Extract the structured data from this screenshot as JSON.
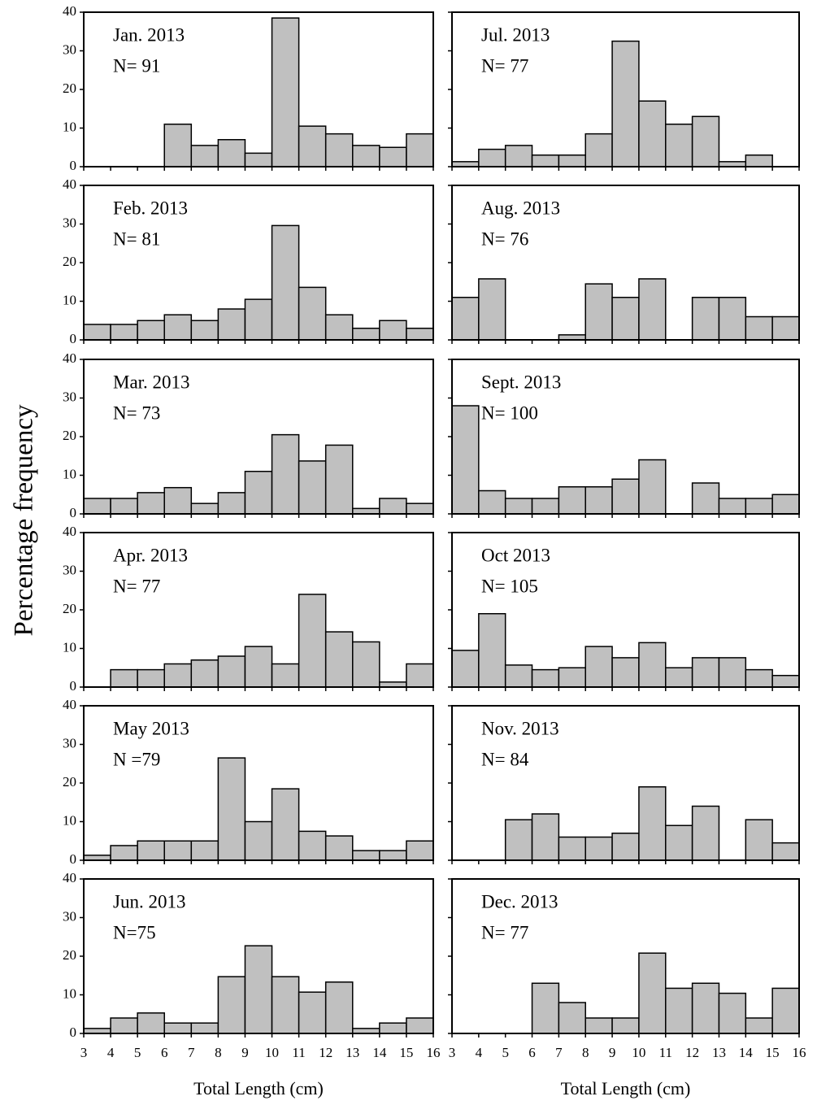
{
  "ylabel": "Percentage frequency",
  "chart_data": [
    {
      "type": "histogram",
      "title": "Jan. 2013",
      "subtitle": "N= 91",
      "bins": [
        3,
        4,
        5,
        6,
        7,
        8,
        9,
        10,
        11,
        12,
        13,
        14,
        15,
        16
      ],
      "values": [
        0,
        0,
        0,
        11,
        5.5,
        7,
        3.5,
        38.5,
        10.5,
        8.5,
        5.5,
        5,
        8.5
      ],
      "color": "#c0c0c0",
      "xlim": [
        3,
        16
      ],
      "ylim": [
        0,
        40
      ],
      "yticks": [
        0,
        10,
        20,
        30,
        40
      ],
      "xticks": [
        3,
        4,
        5,
        6,
        7,
        8,
        9,
        10,
        11,
        12,
        13,
        14,
        15,
        16
      ],
      "ytick_labels": true,
      "xtick_labels": false
    },
    {
      "type": "histogram",
      "title": "Jul. 2013",
      "subtitle": "N= 77",
      "bins": [
        3,
        4,
        5,
        6,
        7,
        8,
        9,
        10,
        11,
        12,
        13,
        14,
        15,
        16
      ],
      "values": [
        1.3,
        4.5,
        5.5,
        3,
        3,
        8.5,
        32.5,
        17,
        11,
        13,
        1.3,
        3,
        0
      ],
      "color": "#c0c0c0",
      "xlim": [
        3,
        16
      ],
      "ylim": [
        0,
        40
      ],
      "yticks": [
        0,
        10,
        20,
        30,
        40
      ],
      "xticks": [
        3,
        4,
        5,
        6,
        7,
        8,
        9,
        10,
        11,
        12,
        13,
        14,
        15,
        16
      ],
      "ytick_labels": false,
      "xtick_labels": false
    },
    {
      "type": "histogram",
      "title": "Feb. 2013",
      "subtitle": "N= 81",
      "bins": [
        3,
        4,
        5,
        6,
        7,
        8,
        9,
        10,
        11,
        12,
        13,
        14,
        15,
        16
      ],
      "values": [
        4,
        4,
        5,
        6.5,
        5,
        8,
        10.5,
        29.6,
        13.6,
        6.5,
        3,
        5,
        3
      ],
      "color": "#c0c0c0",
      "xlim": [
        3,
        16
      ],
      "ylim": [
        0,
        40
      ],
      "yticks": [
        0,
        10,
        20,
        30,
        40
      ],
      "xticks": [
        3,
        4,
        5,
        6,
        7,
        8,
        9,
        10,
        11,
        12,
        13,
        14,
        15,
        16
      ],
      "ytick_labels": true,
      "xtick_labels": false
    },
    {
      "type": "histogram",
      "title": "Aug. 2013",
      "subtitle": "N= 76",
      "bins": [
        3,
        4,
        5,
        6,
        7,
        8,
        9,
        10,
        11,
        12,
        13,
        14,
        15,
        16
      ],
      "values": [
        11,
        15.8,
        0,
        0,
        1.3,
        14.5,
        11,
        15.8,
        0,
        11,
        11,
        6,
        6
      ],
      "color": "#c0c0c0",
      "xlim": [
        3,
        16
      ],
      "ylim": [
        0,
        40
      ],
      "yticks": [
        0,
        10,
        20,
        30,
        40
      ],
      "xticks": [
        3,
        4,
        5,
        6,
        7,
        8,
        9,
        10,
        11,
        12,
        13,
        14,
        15,
        16
      ],
      "ytick_labels": false,
      "xtick_labels": false
    },
    {
      "type": "histogram",
      "title": "Mar. 2013",
      "subtitle": "N= 73",
      "bins": [
        3,
        4,
        5,
        6,
        7,
        8,
        9,
        10,
        11,
        12,
        13,
        14,
        15,
        16
      ],
      "values": [
        4,
        4,
        5.5,
        6.8,
        2.7,
        5.5,
        11,
        20.5,
        13.7,
        17.8,
        1.4,
        4,
        2.7
      ],
      "color": "#c0c0c0",
      "xlim": [
        3,
        16
      ],
      "ylim": [
        0,
        40
      ],
      "yticks": [
        0,
        10,
        20,
        30,
        40
      ],
      "xticks": [
        3,
        4,
        5,
        6,
        7,
        8,
        9,
        10,
        11,
        12,
        13,
        14,
        15,
        16
      ],
      "ytick_labels": true,
      "xtick_labels": false
    },
    {
      "type": "histogram",
      "title": "Sept. 2013",
      "subtitle": "N= 100",
      "bins": [
        3,
        4,
        5,
        6,
        7,
        8,
        9,
        10,
        11,
        12,
        13,
        14,
        15,
        16
      ],
      "values": [
        28,
        6,
        4,
        4,
        7,
        7,
        9,
        14,
        0,
        8,
        4,
        4,
        5
      ],
      "color": "#c0c0c0",
      "xlim": [
        3,
        16
      ],
      "ylim": [
        0,
        40
      ],
      "yticks": [
        0,
        10,
        20,
        30,
        40
      ],
      "xticks": [
        3,
        4,
        5,
        6,
        7,
        8,
        9,
        10,
        11,
        12,
        13,
        14,
        15,
        16
      ],
      "ytick_labels": false,
      "xtick_labels": false
    },
    {
      "type": "histogram",
      "title": "Apr. 2013",
      "subtitle": "N= 77",
      "bins": [
        3,
        4,
        5,
        6,
        7,
        8,
        9,
        10,
        11,
        12,
        13,
        14,
        15,
        16
      ],
      "values": [
        0,
        4.5,
        4.5,
        6,
        7,
        8,
        10.5,
        6,
        24,
        14.3,
        11.7,
        1.3,
        6
      ],
      "color": "#c0c0c0",
      "xlim": [
        3,
        16
      ],
      "ylim": [
        0,
        40
      ],
      "yticks": [
        0,
        10,
        20,
        30,
        40
      ],
      "xticks": [
        3,
        4,
        5,
        6,
        7,
        8,
        9,
        10,
        11,
        12,
        13,
        14,
        15,
        16
      ],
      "ytick_labels": true,
      "xtick_labels": false
    },
    {
      "type": "histogram",
      "title": "Oct 2013",
      "subtitle": "N= 105",
      "bins": [
        3,
        4,
        5,
        6,
        7,
        8,
        9,
        10,
        11,
        12,
        13,
        14,
        15,
        16
      ],
      "values": [
        9.5,
        19,
        5.7,
        4.5,
        5,
        10.5,
        7.6,
        11.5,
        5,
        7.6,
        7.6,
        4.5,
        3
      ],
      "color": "#c0c0c0",
      "xlim": [
        3,
        16
      ],
      "ylim": [
        0,
        40
      ],
      "yticks": [
        0,
        10,
        20,
        30,
        40
      ],
      "xticks": [
        3,
        4,
        5,
        6,
        7,
        8,
        9,
        10,
        11,
        12,
        13,
        14,
        15,
        16
      ],
      "ytick_labels": false,
      "xtick_labels": false
    },
    {
      "type": "histogram",
      "title": "May 2013",
      "subtitle": "N =79",
      "bins": [
        3,
        4,
        5,
        6,
        7,
        8,
        9,
        10,
        11,
        12,
        13,
        14,
        15,
        16
      ],
      "values": [
        1.3,
        3.8,
        5,
        5,
        5,
        26.5,
        10,
        18.5,
        7.5,
        6.3,
        2.5,
        2.5,
        5
      ],
      "color": "#c0c0c0",
      "xlim": [
        3,
        16
      ],
      "ylim": [
        0,
        40
      ],
      "yticks": [
        0,
        10,
        20,
        30,
        40
      ],
      "xticks": [
        3,
        4,
        5,
        6,
        7,
        8,
        9,
        10,
        11,
        12,
        13,
        14,
        15,
        16
      ],
      "ytick_labels": true,
      "xtick_labels": false
    },
    {
      "type": "histogram",
      "title": "Nov. 2013",
      "subtitle": "N= 84",
      "bins": [
        3,
        4,
        5,
        6,
        7,
        8,
        9,
        10,
        11,
        12,
        13,
        14,
        15,
        16
      ],
      "values": [
        0,
        0,
        10.5,
        12,
        6,
        6,
        7,
        19,
        9,
        14,
        0,
        10.5,
        4.5
      ],
      "color": "#c0c0c0",
      "xlim": [
        3,
        16
      ],
      "ylim": [
        0,
        40
      ],
      "yticks": [
        0,
        10,
        20,
        30,
        40
      ],
      "xticks": [
        3,
        4,
        5,
        6,
        7,
        8,
        9,
        10,
        11,
        12,
        13,
        14,
        15,
        16
      ],
      "ytick_labels": false,
      "xtick_labels": false
    },
    {
      "type": "histogram",
      "title": "Jun. 2013",
      "subtitle": "N=75",
      "bins": [
        3,
        4,
        5,
        6,
        7,
        8,
        9,
        10,
        11,
        12,
        13,
        14,
        15,
        16
      ],
      "values": [
        1.3,
        4,
        5.3,
        2.7,
        2.7,
        14.7,
        22.7,
        14.7,
        10.7,
        13.3,
        1.3,
        2.7,
        4
      ],
      "color": "#c0c0c0",
      "xlim": [
        3,
        16
      ],
      "ylim": [
        0,
        40
      ],
      "yticks": [
        0,
        10,
        20,
        30,
        40
      ],
      "xticks": [
        3,
        4,
        5,
        6,
        7,
        8,
        9,
        10,
        11,
        12,
        13,
        14,
        15,
        16
      ],
      "ytick_labels": true,
      "xtick_labels": true,
      "xlabel": "Total Length (cm)"
    },
    {
      "type": "histogram",
      "title": "Dec. 2013",
      "subtitle": "N= 77",
      "bins": [
        3,
        4,
        5,
        6,
        7,
        8,
        9,
        10,
        11,
        12,
        13,
        14,
        15,
        16
      ],
      "values": [
        0,
        0,
        0,
        13,
        8,
        4,
        4,
        20.8,
        11.7,
        13,
        10.4,
        4,
        11.7
      ],
      "color": "#c0c0c0",
      "xlim": [
        3,
        16
      ],
      "ylim": [
        0,
        40
      ],
      "yticks": [
        0,
        10,
        20,
        30,
        40
      ],
      "xticks": [
        3,
        4,
        5,
        6,
        7,
        8,
        9,
        10,
        11,
        12,
        13,
        14,
        15,
        16
      ],
      "ytick_labels": false,
      "xtick_labels": true,
      "xlabel": "Total Length (cm)"
    }
  ]
}
